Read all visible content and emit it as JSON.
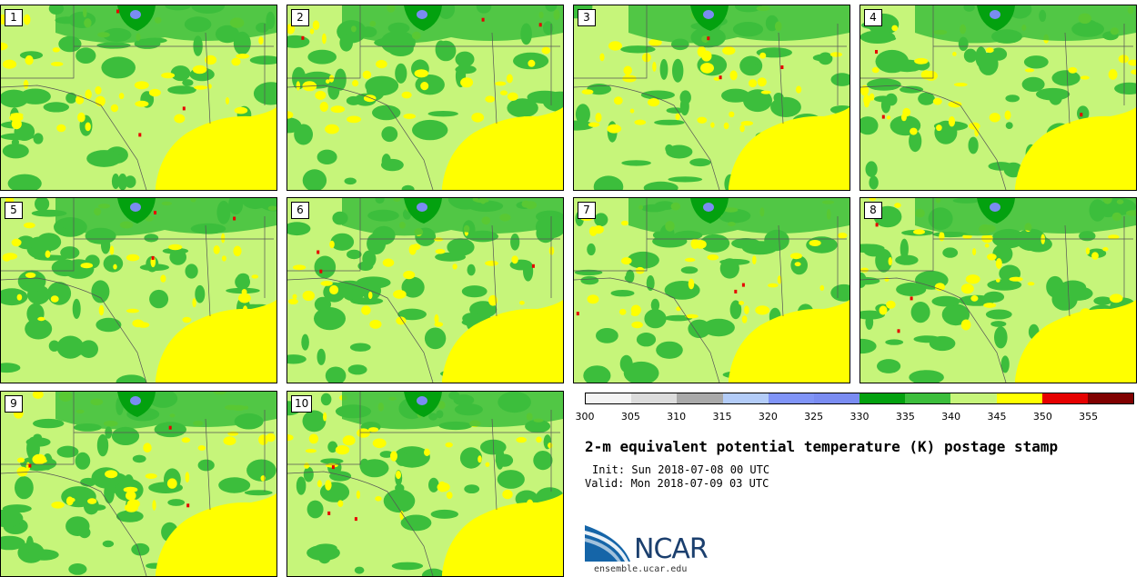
{
  "panels": [
    {
      "label": "1"
    },
    {
      "label": "2"
    },
    {
      "label": "3"
    },
    {
      "label": "4"
    },
    {
      "label": "5"
    },
    {
      "label": "6"
    },
    {
      "label": "7"
    },
    {
      "label": "8"
    },
    {
      "label": "9"
    },
    {
      "label": "10"
    }
  ],
  "colorbar": {
    "colors": [
      "#f4f4f4",
      "#dcdcdc",
      "#a9a9a9",
      "#b3ccf8",
      "#8094f7",
      "#7a8cf2",
      "#03a10f",
      "#3cbe3c",
      "#c6f57a",
      "#ffff00",
      "#e60000",
      "#800000"
    ],
    "ticks": [
      "300",
      "305",
      "310",
      "315",
      "320",
      "325",
      "330",
      "335",
      "340",
      "345",
      "350",
      "355"
    ]
  },
  "title": "2-m equivalent potential temperature (K) postage stamp",
  "init": "Init: Sun 2018-07-08 00 UTC",
  "valid": "Valid: Mon 2018-07-09 03 UTC",
  "logo": {
    "text": "NCAR",
    "url": "ensemble.ucar.edu",
    "icon": "ncar-logo-icon"
  },
  "map_colors": {
    "dark_green": "#3cbe3c",
    "light_green": "#c6f57a",
    "yellow": "#ffff00",
    "darker_green": "#03a10f",
    "blue": "#7a8cf2",
    "red": "#e60000",
    "border": "#555555"
  }
}
